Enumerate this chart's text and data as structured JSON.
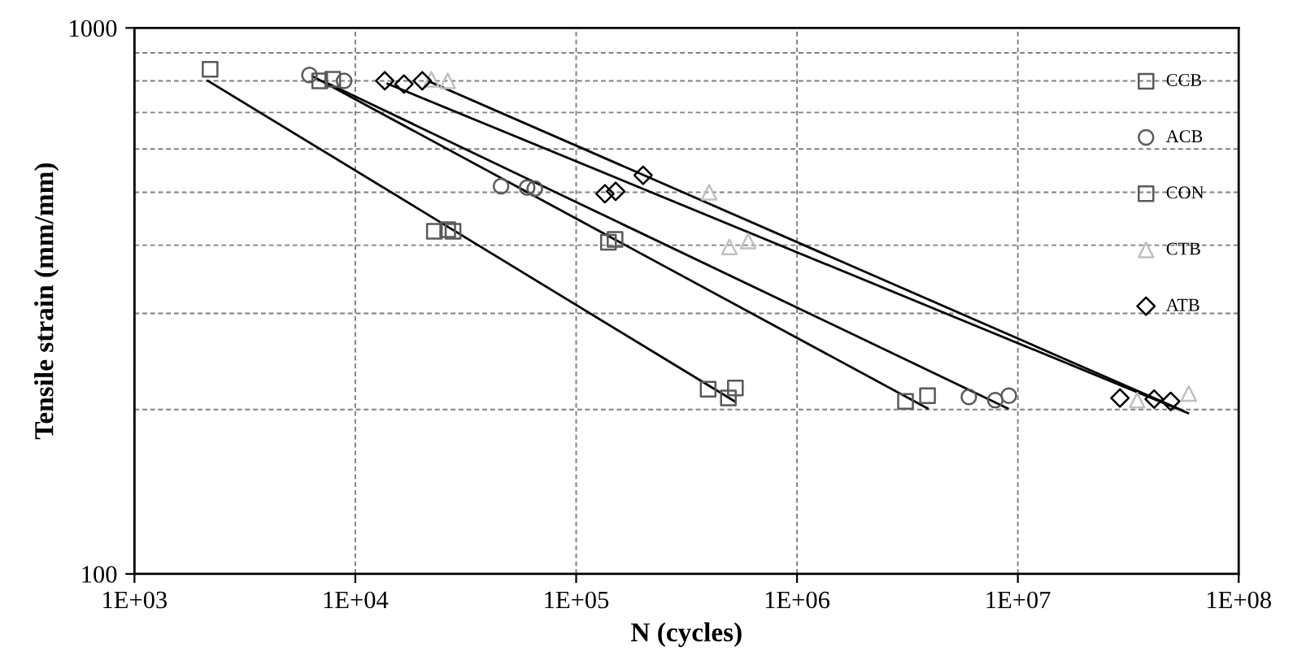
{
  "chart_data": {
    "type": "scatter",
    "xlabel": "N (cycles)",
    "ylabel": "Tensile strain (mm/mm)",
    "log": "xy",
    "grid": true,
    "legend": "top right",
    "xlim": [
      1000,
      100000000
    ],
    "ylim": [
      100,
      1000
    ],
    "xticks": [
      {
        "value": 1000,
        "label": "1E+03"
      },
      {
        "value": 10000,
        "label": "1E+04"
      },
      {
        "value": 100000,
        "label": "1E+05"
      },
      {
        "value": 1000000,
        "label": "1E+06"
      },
      {
        "value": 10000000,
        "label": "1E+07"
      },
      {
        "value": 100000000,
        "label": "1E+08"
      }
    ],
    "yticks": [
      100,
      {
        "value": 200,
        "label": null
      },
      {
        "value": 300,
        "label": null
      },
      {
        "value": 400,
        "label": null
      },
      {
        "value": 500,
        "label": null
      },
      {
        "value": 600,
        "label": null
      },
      {
        "value": 700,
        "label": null
      },
      {
        "value": 800,
        "label": null
      },
      {
        "value": 900,
        "label": null
      },
      1000
    ],
    "series": [
      {
        "name": "CCB",
        "marker": "square",
        "color": "#595959",
        "x": [
          2200,
          22800,
          26200,
          27700,
          396000,
          489000,
          526000
        ],
        "values": [
          840,
          424,
          427,
          424,
          218,
          210,
          219
        ]
      },
      {
        "name": "ACB",
        "marker": "circle",
        "color": "#595959",
        "x": [
          6200,
          8900,
          45700,
          60000,
          65000,
          6000000,
          7900000,
          9100000
        ],
        "values": [
          820,
          800,
          513,
          510,
          508,
          211,
          208,
          212
        ]
      },
      {
        "name": "CON",
        "marker": "square",
        "color": "#595959",
        "x": [
          6900,
          7900,
          140000,
          150000,
          3100000,
          3900000
        ],
        "values": [
          800,
          805,
          405,
          410,
          207,
          212
        ]
      },
      {
        "name": "CTB",
        "marker": "triangle",
        "color": "#c0c0c0",
        "x": [
          22100,
          26200,
          400000,
          494000,
          601000,
          34700000,
          59400000
        ],
        "values": [
          805,
          800,
          500,
          397,
          407,
          208,
          214
        ]
      },
      {
        "name": "ATB",
        "marker": "diamond",
        "color": "#000000",
        "x": [
          13600,
          16600,
          20100,
          135000,
          151000,
          201000,
          29000000,
          41400000,
          49200000
        ],
        "values": [
          800,
          789,
          800,
          497,
          502,
          537,
          210,
          209,
          207
        ]
      },
      {
        "type": "line",
        "marker": "none",
        "color": "#000000",
        "x": [
          2150,
          523000
        ],
        "values": [
          800,
          207
        ]
      },
      {
        "type": "line",
        "marker": "none",
        "color": "#000000",
        "x": [
          6400,
          3900000
        ],
        "values": [
          816,
          201
        ]
      },
      {
        "type": "line",
        "marker": "none",
        "color": "#000000",
        "x": [
          7200,
          9000000
        ],
        "values": [
          798,
          201
        ]
      },
      {
        "type": "line",
        "marker": "none",
        "color": "#000000",
        "x": [
          21300,
          56000000
        ],
        "values": [
          800,
          199
        ]
      },
      {
        "type": "line",
        "marker": "none",
        "color": "#000000",
        "x": [
          14000,
          59000000
        ],
        "values": [
          790,
          197
        ]
      }
    ]
  }
}
